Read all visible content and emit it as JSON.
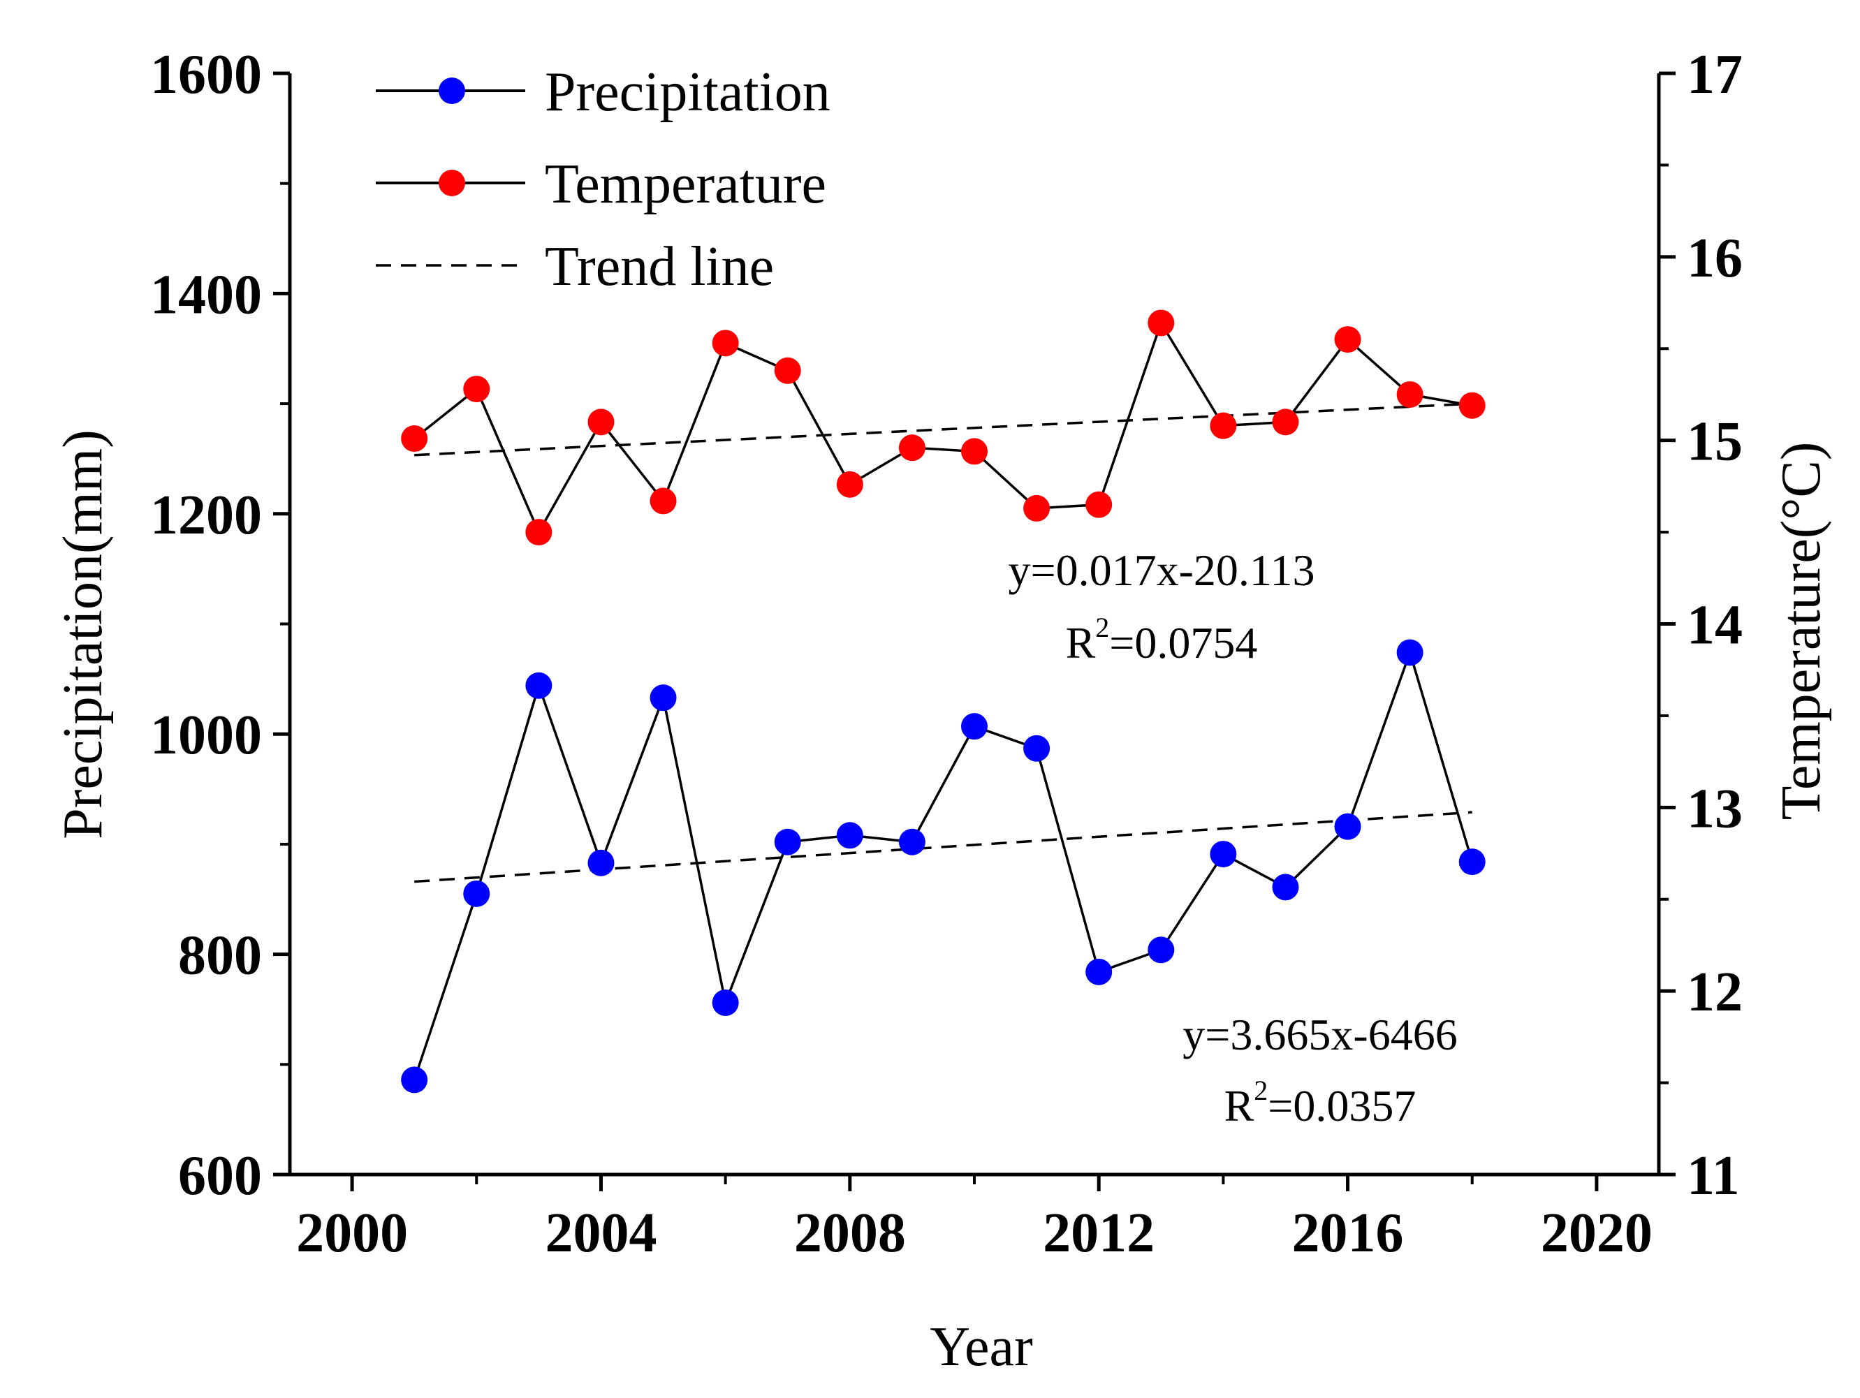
{
  "chart_data": {
    "type": "line",
    "title": "",
    "xlabel": "Year",
    "ylabel": "Precipitation(mm)",
    "y2label": "Temperature(°C)",
    "xlim": [
      1999,
      2021
    ],
    "ylim": [
      600,
      1600
    ],
    "y2lim": [
      11,
      17
    ],
    "xticks": [
      2000,
      2004,
      2008,
      2012,
      2016,
      2020
    ],
    "yticks": [
      600,
      800,
      1000,
      1200,
      1400,
      1600
    ],
    "y2ticks": [
      11,
      12,
      13,
      14,
      15,
      16,
      17
    ],
    "x": [
      2001,
      2002,
      2003,
      2004,
      2005,
      2006,
      2007,
      2008,
      2009,
      2010,
      2011,
      2012,
      2013,
      2014,
      2015,
      2016,
      2017,
      2018
    ],
    "series": [
      {
        "name": "Precipitation",
        "axis": "left",
        "color": "#0000ff",
        "values": [
          686,
          855,
          1044,
          883,
          1033,
          756,
          902,
          908,
          902,
          1007,
          987,
          784,
          804,
          891,
          861,
          916,
          1074,
          884
        ]
      },
      {
        "name": "Temperature",
        "axis": "right",
        "color": "#ff0000",
        "values": [
          15.01,
          15.28,
          14.5,
          15.1,
          14.67,
          15.53,
          15.38,
          14.76,
          14.96,
          14.94,
          14.63,
          14.65,
          15.64,
          15.08,
          15.1,
          15.55,
          15.25,
          15.19
        ]
      }
    ],
    "trend_lines": [
      {
        "name": "Trend line",
        "axis": "right",
        "from": [
          2001,
          14.92
        ],
        "to": [
          2018,
          15.2
        ],
        "equation": "y=0.017x-20.113",
        "r2_label": "R",
        "r2_exp": "2",
        "r2_value": "=0.0754"
      },
      {
        "name": "Trend line",
        "axis": "left",
        "from": [
          2001,
          866
        ],
        "to": [
          2018,
          929
        ],
        "equation": "y=3.665x-6466",
        "r2_label": "R",
        "r2_exp": "2",
        "r2_value": "=0.0357"
      }
    ],
    "legend": {
      "position": "top-left",
      "entries": [
        "Precipitation",
        "Temperature",
        "Trend line"
      ]
    },
    "colors": {
      "axis": "#000000",
      "line": "#000000"
    }
  }
}
